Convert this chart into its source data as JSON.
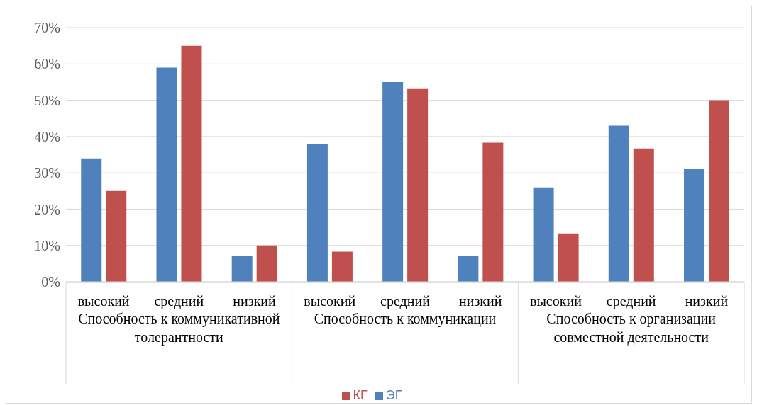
{
  "chart_data": {
    "type": "bar",
    "categories": [
      "высокий",
      "средний",
      "низкий",
      "высокий",
      "средний",
      "низкий",
      "высокий",
      "средний",
      "низкий"
    ],
    "series": [
      {
        "name": "ЭГ",
        "color": "#4f81bd",
        "values": [
          34,
          59,
          7,
          38,
          55,
          7,
          26,
          43,
          31
        ]
      },
      {
        "name": "КГ",
        "color": "#c0504d",
        "values": [
          25,
          65,
          10,
          8.3,
          53.3,
          38.3,
          13.3,
          36.7,
          50
        ]
      }
    ],
    "annotations": [
      "Способность к коммуникативной толерантности",
      "Способность к коммуникации",
      "Способность к организации совместной деятельности"
    ],
    "ylim": [
      0,
      70
    ],
    "yticks": [
      {
        "value": 0,
        "label": "0%"
      },
      {
        "value": 10,
        "label": "10%"
      },
      {
        "value": 20,
        "label": "20%"
      },
      {
        "value": 30,
        "label": "30%"
      },
      {
        "value": 40,
        "label": "40%"
      },
      {
        "value": 50,
        "label": "50%"
      },
      {
        "value": 60,
        "label": "60%"
      },
      {
        "value": 70,
        "label": "70%"
      }
    ],
    "grid": "y",
    "legend": "bottom"
  }
}
